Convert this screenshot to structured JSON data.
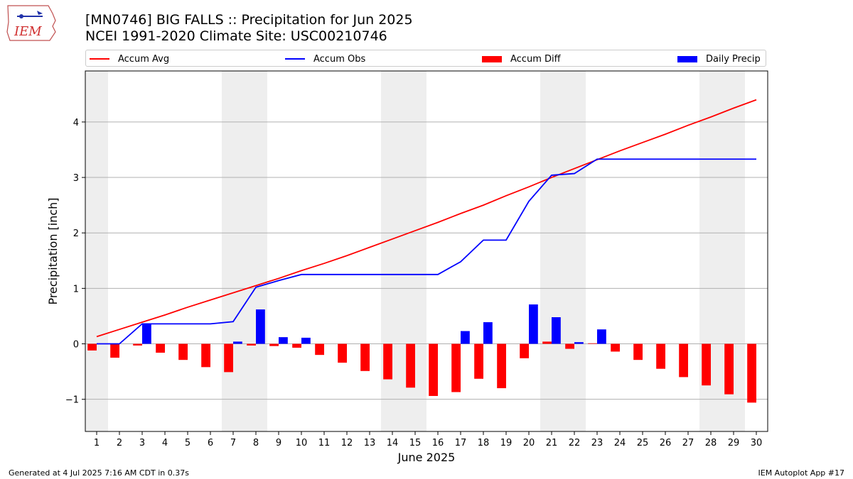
{
  "header": {
    "logo_text": "IEM",
    "title_line1": "[MN0746] BIG FALLS :: Precipitation for Jun 2025",
    "title_line2": "NCEI 1991-2020 Climate Site: USC00210746"
  },
  "legend": {
    "items": [
      {
        "label": "Accum Avg",
        "kind": "line",
        "color": "#ff0000"
      },
      {
        "label": "Accum Obs",
        "kind": "line",
        "color": "#0000ff"
      },
      {
        "label": "Accum Diff",
        "kind": "box",
        "color": "#ff0000"
      },
      {
        "label": "Daily Precip",
        "kind": "box",
        "color": "#0000ff"
      }
    ]
  },
  "footer": {
    "left": "Generated at 4 Jul 2025 7:16 AM CDT in 0.37s",
    "right": "IEM Autoplot App #17"
  },
  "chart_data": {
    "type": "bar",
    "xlabel": "June 2025",
    "ylabel": "Precipitation [inch]",
    "xlim": [
      0.5,
      30.5
    ],
    "ylim": [
      -1.58,
      4.92
    ],
    "yticks": [
      -1,
      0,
      1,
      2,
      3,
      4
    ],
    "grid": "horizontal",
    "legend_position": "top",
    "weekend_shading": [
      [
        0.5,
        1.5
      ],
      [
        6.5,
        8.5
      ],
      [
        13.5,
        15.5
      ],
      [
        20.5,
        22.5
      ],
      [
        27.5,
        29.5
      ]
    ],
    "categories": [
      "1",
      "2",
      "3",
      "4",
      "5",
      "6",
      "7",
      "8",
      "9",
      "10",
      "11",
      "12",
      "13",
      "14",
      "15",
      "16",
      "17",
      "18",
      "19",
      "20",
      "21",
      "22",
      "23",
      "24",
      "25",
      "26",
      "27",
      "28",
      "29",
      "30"
    ],
    "series": [
      {
        "name": "Accum Avg",
        "kind": "line",
        "color": "#ff0000",
        "values": [
          0.13,
          0.26,
          0.39,
          0.52,
          0.66,
          0.79,
          0.92,
          1.05,
          1.18,
          1.32,
          1.45,
          1.59,
          1.74,
          1.89,
          2.04,
          2.19,
          2.35,
          2.5,
          2.67,
          2.83,
          3.0,
          3.16,
          3.32,
          3.48,
          3.63,
          3.78,
          3.94,
          4.09,
          4.25,
          4.4
        ]
      },
      {
        "name": "Accum Obs",
        "kind": "line",
        "color": "#0000ff",
        "values": [
          0.0,
          0.0,
          0.36,
          0.36,
          0.36,
          0.36,
          0.4,
          1.02,
          1.14,
          1.25,
          1.25,
          1.25,
          1.25,
          1.25,
          1.25,
          1.25,
          1.48,
          1.87,
          1.87,
          2.57,
          3.04,
          3.07,
          3.33,
          3.33,
          3.33,
          3.33,
          3.33,
          3.33,
          3.33,
          3.33
        ]
      },
      {
        "name": "Accum Diff",
        "kind": "bar",
        "color": "#ff0000",
        "values": [
          -0.12,
          -0.25,
          -0.03,
          -0.16,
          -0.29,
          -0.42,
          -0.51,
          -0.03,
          -0.04,
          -0.07,
          -0.2,
          -0.34,
          -0.49,
          -0.64,
          -0.79,
          -0.94,
          -0.87,
          -0.63,
          -0.8,
          -0.26,
          0.04,
          -0.09,
          0.01,
          -0.14,
          -0.29,
          -0.45,
          -0.6,
          -0.75,
          -0.91,
          -1.06
        ]
      },
      {
        "name": "Daily Precip",
        "kind": "bar",
        "color": "#0000ff",
        "values": [
          0.0,
          0.0,
          0.36,
          0.0,
          0.0,
          0.0,
          0.04,
          0.62,
          0.12,
          0.11,
          0.0,
          0.0,
          0.0,
          0.0,
          0.0,
          0.0,
          0.23,
          0.39,
          0.0,
          0.71,
          0.48,
          0.03,
          0.26,
          0.0,
          0.0,
          0.0,
          0.0,
          0.0,
          0.0,
          0.0
        ]
      }
    ]
  }
}
